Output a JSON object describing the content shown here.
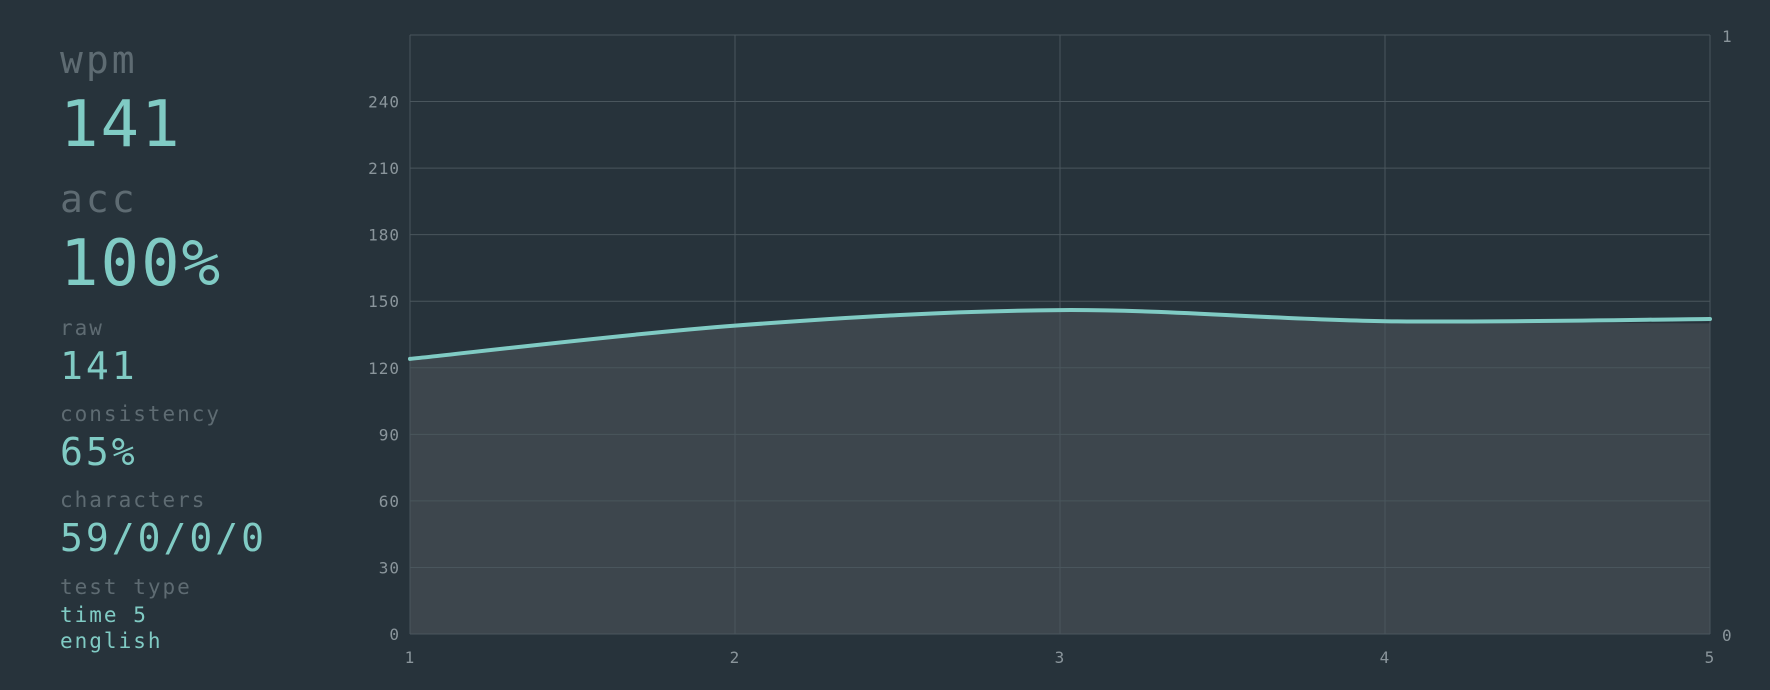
{
  "stats": {
    "wpm": {
      "label": "wpm",
      "value": "141"
    },
    "acc": {
      "label": "acc",
      "value": "100%"
    },
    "raw": {
      "label": "raw",
      "value": "141"
    },
    "consistency": {
      "label": "consistency",
      "value": "65%"
    },
    "characters": {
      "label": "characters",
      "value": "59/0/0/0"
    },
    "test_type": {
      "label": "test type",
      "mode": "time 5",
      "language": "english"
    }
  },
  "colors": {
    "background": "#27333b",
    "accent": "#80cbc4",
    "muted": "#5e6b72",
    "area_fill": "#3d464d",
    "grid": "#4a565d"
  },
  "chart_data": {
    "type": "line",
    "x": [
      1,
      2,
      3,
      4,
      5
    ],
    "xlim": [
      1,
      5
    ],
    "ylim": [
      0,
      270
    ],
    "y_ticks": [
      "0",
      "30",
      "60",
      "90",
      "120",
      "150",
      "180",
      "210",
      "240"
    ],
    "x_ticks": [
      "1",
      "2",
      "3",
      "4",
      "5"
    ],
    "y2_ticks": [
      "0",
      "1"
    ],
    "grid": true,
    "series": [
      {
        "values": [
          124,
          139,
          146,
          141,
          142
        ],
        "style": "line",
        "color": "#80cbc4"
      },
      {
        "values": [
          124,
          139,
          146,
          141,
          140
        ],
        "style": "area",
        "color": "#3d464d"
      }
    ]
  }
}
